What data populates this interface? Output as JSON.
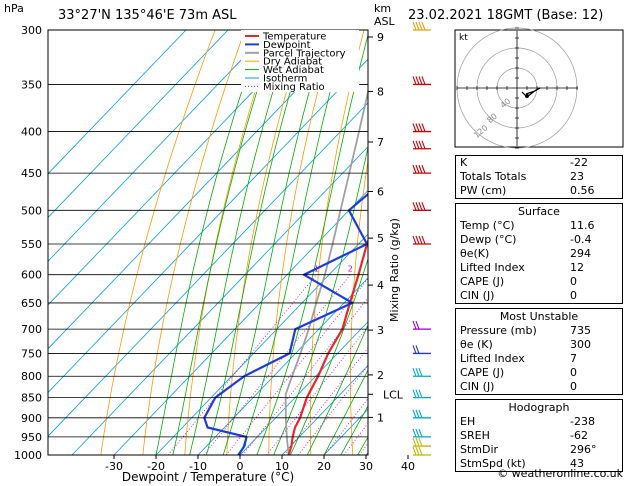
{
  "header": {
    "location": "33°27'N  135°46'E  73m  ASL",
    "datetime": "23.02.2021  18GMT  (Base: 12)",
    "p_unit": "hPa",
    "km_unit": "km",
    "asl_unit": "ASL"
  },
  "legend": [
    "Temperature",
    "Dewpoint",
    "Parcel Trajectory",
    "Dry Adiabat",
    "Wet Adiabat",
    "Isotherm",
    "Mixing Ratio"
  ],
  "colors": {
    "temperature": "#e8262b",
    "dewpoint": "#1f3bdd",
    "parcel": "#a0a0a0",
    "dry_adiabat": "#ff9900",
    "wet_adiabat": "#00b000",
    "isotherm": "#00a0e0",
    "mixing_ratio": "#d000d0"
  },
  "chart_data": {
    "type": "line",
    "xlabel": "Dewpoint / Temperature (°C)",
    "ylabel_right": "Mixing Ratio (g/kg)",
    "x_ticks": [
      -30,
      -20,
      -10,
      0,
      10,
      20,
      30,
      40
    ],
    "pressure_levels": [
      300,
      350,
      400,
      450,
      500,
      550,
      600,
      650,
      700,
      750,
      800,
      850,
      900,
      950,
      1000
    ],
    "km_ticks": [
      {
        "km": "9",
        "p": 306
      },
      {
        "km": "8",
        "p": 357
      },
      {
        "km": "7",
        "p": 412
      },
      {
        "km": "6",
        "p": 474
      },
      {
        "km": "5",
        "p": 541
      },
      {
        "km": "4",
        "p": 618
      },
      {
        "km": "3",
        "p": 702
      },
      {
        "km": "2",
        "p": 797
      },
      {
        "km": "1",
        "p": 899
      }
    ],
    "lcl": {
      "label": "LCL",
      "p": 842
    },
    "mixing_ratio_labels": [
      "1",
      "2",
      "3",
      "4",
      "6",
      "8",
      "10",
      "15",
      "20",
      "25"
    ],
    "series": [
      {
        "name": "Temperature",
        "points": [
          [
            1000,
            11.6
          ],
          [
            975,
            10.2
          ],
          [
            950,
            8.4
          ],
          [
            925,
            6.8
          ],
          [
            900,
            5.8
          ],
          [
            850,
            2.8
          ],
          [
            800,
            0.6
          ],
          [
            750,
            -2.2
          ],
          [
            700,
            -4.4
          ],
          [
            650,
            -8.6
          ],
          [
            600,
            -13.0
          ],
          [
            550,
            -18.0
          ],
          [
            500,
            -22.6
          ],
          [
            450,
            -28.4
          ],
          [
            400,
            -33.8
          ],
          [
            350,
            -41.8
          ],
          [
            300,
            -50.0
          ]
        ]
      },
      {
        "name": "Dewpoint",
        "points": [
          [
            1000,
            -0.4
          ],
          [
            975,
            -1.0
          ],
          [
            950,
            -2.6
          ],
          [
            925,
            -14.0
          ],
          [
            900,
            -17.0
          ],
          [
            850,
            -19.0
          ],
          [
            800,
            -17.0
          ],
          [
            750,
            -11.4
          ],
          [
            700,
            -15.6
          ],
          [
            650,
            -8.0
          ],
          [
            600,
            -26.0
          ],
          [
            550,
            -18.0
          ],
          [
            500,
            -30.0
          ],
          [
            450,
            -28.0
          ],
          [
            430,
            -22.8
          ],
          [
            400,
            -26.0
          ],
          [
            350,
            -44.0
          ],
          [
            320,
            -43.8
          ]
        ]
      },
      {
        "name": "Parcel Trajectory",
        "points": [
          [
            1000,
            11.6
          ],
          [
            950,
            7.0
          ],
          [
            900,
            2.4
          ],
          [
            842,
            -3.0
          ],
          [
            800,
            -5.6
          ],
          [
            750,
            -8.8
          ],
          [
            700,
            -12.4
          ],
          [
            650,
            -16.6
          ],
          [
            600,
            -21.0
          ],
          [
            550,
            -26.2
          ],
          [
            500,
            -32.0
          ],
          [
            450,
            -38.4
          ],
          [
            400,
            -45.6
          ],
          [
            350,
            -53.8
          ],
          [
            300,
            -63.0
          ]
        ]
      }
    ]
  },
  "hodograph": {
    "label": "kt",
    "ring_labels": [
      "40",
      "80",
      "120"
    ]
  },
  "indices": {
    "top": [
      {
        "k": "K",
        "v": "-22"
      },
      {
        "k": "Totals Totals",
        "v": "23"
      },
      {
        "k": "PW (cm)",
        "v": "0.56"
      }
    ],
    "surface_title": "Surface",
    "surface": [
      {
        "k": "Temp (°C)",
        "v": "11.6"
      },
      {
        "k": "Dewp (°C)",
        "v": "-0.4"
      },
      {
        "k": "θe(K)",
        "v": "294"
      },
      {
        "k": "Lifted Index",
        "v": "12"
      },
      {
        "k": "CAPE (J)",
        "v": "0"
      },
      {
        "k": "CIN (J)",
        "v": "0"
      }
    ],
    "unstable_title": "Most Unstable",
    "unstable": [
      {
        "k": "Pressure (mb)",
        "v": "735"
      },
      {
        "k": "θe (K)",
        "v": "300"
      },
      {
        "k": "Lifted Index",
        "v": "7"
      },
      {
        "k": "CAPE (J)",
        "v": "0"
      },
      {
        "k": "CIN (J)",
        "v": "0"
      }
    ],
    "hodo_title": "Hodograph",
    "hodo": [
      {
        "k": "EH",
        "v": "-238"
      },
      {
        "k": "SREH",
        "v": "-62"
      },
      {
        "k": "StmDir",
        "v": "296°"
      },
      {
        "k": "StmSpd (kt)",
        "v": "43"
      }
    ]
  },
  "footer": "© weatheronline.co.uk"
}
